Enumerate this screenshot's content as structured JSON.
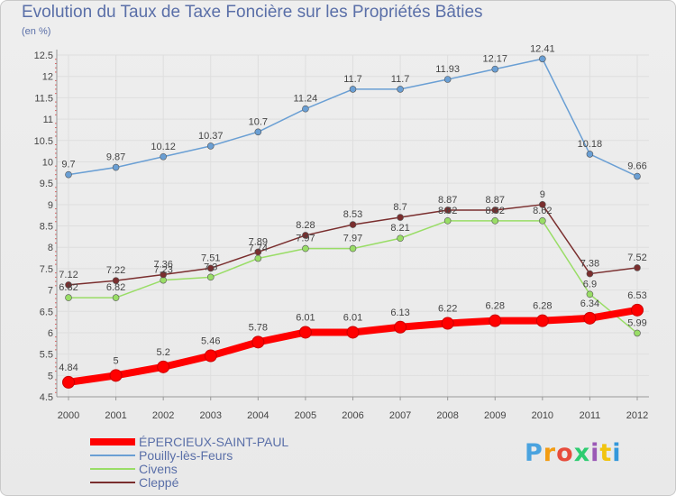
{
  "chart_data": {
    "type": "line",
    "title": "Evolution du Taux de Taxe Foncière sur les Propriétés Bâties",
    "subtitle": "(en %)",
    "x": [
      "2000",
      "2001",
      "2002",
      "2003",
      "2004",
      "2005",
      "2006",
      "2007",
      "2008",
      "2009",
      "2010",
      "2011",
      "2012"
    ],
    "ylim": [
      4.5,
      12.5
    ],
    "yticks": [
      "4.5",
      "5",
      "5.5",
      "6",
      "6.5",
      "7",
      "7.5",
      "8",
      "8.5",
      "9",
      "9.5",
      "10",
      "10.5",
      "11",
      "11.5",
      "12",
      "12.5"
    ],
    "grid": true,
    "legend_position": "bottom-left",
    "series": [
      {
        "name": "ÉPERCIEUX-SAINT-PAUL",
        "color": "#ff0000",
        "values": [
          4.84,
          5,
          5.2,
          5.46,
          5.78,
          6.01,
          6.01,
          6.13,
          6.22,
          6.28,
          6.28,
          6.34,
          6.53
        ],
        "labels": [
          "4.84",
          "5",
          "5.2",
          "5.46",
          "5.78",
          "6.01",
          "6.01",
          "6.13",
          "6.22",
          "6.28",
          "6.28",
          "6.34",
          "6.53"
        ]
      },
      {
        "name": "Pouilly-lès-Feurs",
        "color": "#6a9fd4",
        "values": [
          9.7,
          9.87,
          10.12,
          10.37,
          10.7,
          11.24,
          11.7,
          11.7,
          11.93,
          12.17,
          12.41,
          10.18,
          9.66
        ],
        "labels": [
          "9.7",
          "9.87",
          "10.12",
          "10.37",
          "10.7",
          "11.24",
          "11.7",
          "11.7",
          "11.93",
          "12.17",
          "12.41",
          "10.18",
          "9.66"
        ]
      },
      {
        "name": "Civens",
        "color": "#99dd66",
        "values": [
          6.82,
          6.82,
          7.23,
          7.3,
          7.74,
          7.97,
          7.97,
          8.21,
          8.62,
          8.62,
          8.62,
          6.9,
          5.99
        ],
        "labels": [
          "6.82",
          "6.82",
          "7.23",
          "7.3",
          "7.74",
          "7.97",
          "7.97",
          "8.21",
          "8.62",
          "8.62",
          "8.62",
          "6.9",
          "5.99"
        ]
      },
      {
        "name": "Cleppé",
        "color": "#7a2e2e",
        "values": [
          7.12,
          7.22,
          7.36,
          7.51,
          7.89,
          8.28,
          8.53,
          8.7,
          8.87,
          8.87,
          9,
          7.38,
          7.52
        ],
        "labels": [
          "7.12",
          "7.22",
          "7.36",
          "7.51",
          "7.89",
          "8.28",
          "8.53",
          "8.7",
          "8.87",
          "8.87",
          "9",
          "7.38",
          "7.52"
        ]
      }
    ]
  },
  "logo": {
    "letters": [
      "P",
      "r",
      "o",
      "x",
      "i",
      "t",
      "i"
    ],
    "colors": [
      "#4aa3df",
      "#f39c12",
      "#e74c3c",
      "#2ecc71",
      "#9b59b6",
      "#f1c40f",
      "#3498db"
    ]
  }
}
